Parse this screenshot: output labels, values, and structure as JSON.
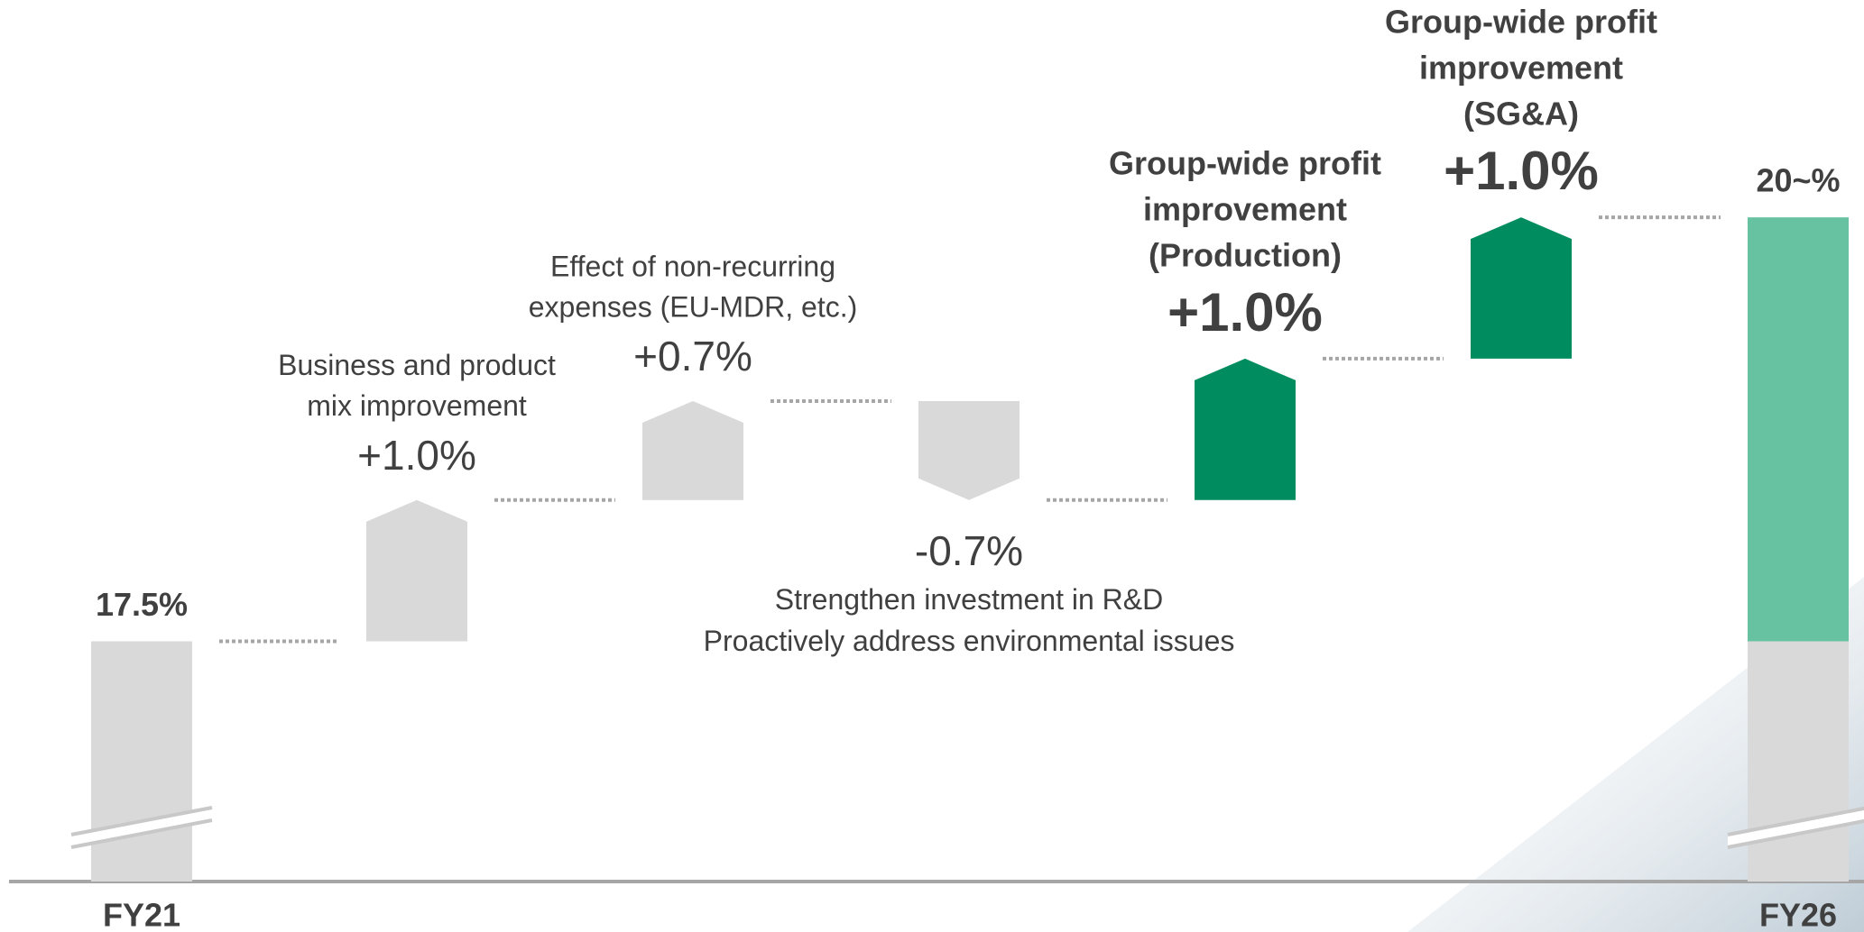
{
  "chart_data": {
    "type": "waterfall",
    "categories": [
      "FY21",
      null,
      null,
      null,
      null,
      null,
      "FY26"
    ],
    "values": [
      17.5,
      1.0,
      0.7,
      -0.7,
      1.0,
      1.0,
      20
    ],
    "value_labels": [
      "17.5%",
      "+1.0%",
      "+0.7%",
      "-0.7%",
      "+1.0%",
      "+1.0%",
      "20~%"
    ],
    "colors": [
      "#d9d9d9",
      "#d9d9d9",
      "#d9d9d9",
      "#d9d9d9",
      "#008c5f",
      "#008c5f",
      "#66c2a0"
    ],
    "emphasis": [
      false,
      false,
      false,
      false,
      true,
      true,
      false
    ],
    "notes": [
      null,
      [
        "Business and product",
        "mix improvement"
      ],
      [
        "Effect of non-recurring",
        "expenses (EU-MDR, etc.)"
      ],
      [
        "Strengthen investment in R&D",
        "Proactively address environmental issues"
      ],
      [
        "Group-wide profit",
        "improvement",
        "(Production)"
      ],
      [
        "Group-wide profit",
        "improvement",
        "(SG&A)"
      ],
      null
    ],
    "ylim": [
      15.8,
      22
    ]
  }
}
